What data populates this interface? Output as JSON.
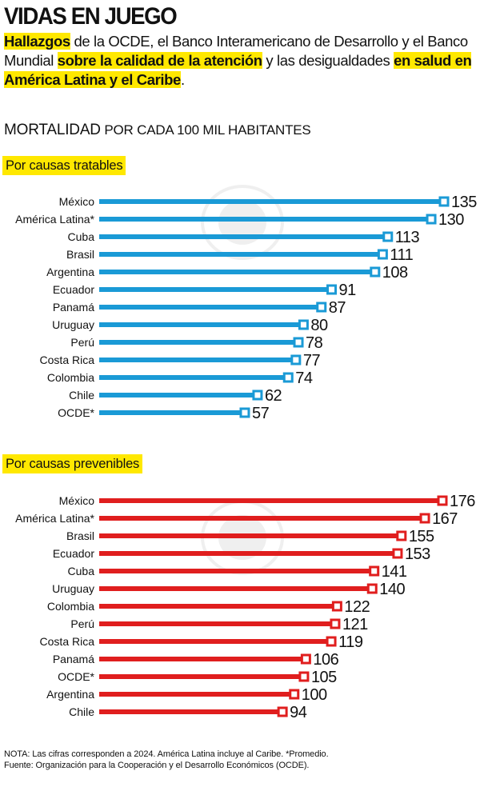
{
  "header": {
    "title": "VIDAS EN JUEGO",
    "lead": [
      {
        "text": "Hallazgos",
        "hl": true
      },
      {
        "text": " de la OCDE, el Banco Interamericano de Desarrollo y el Banco Mundial ",
        "hl": false
      },
      {
        "text": "sobre la calidad de la atención",
        "hl": true
      },
      {
        "text": " y las desigualdades ",
        "hl": false
      },
      {
        "text": "en salud en América Latina y el Caribe",
        "hl": true
      },
      {
        "text": ".",
        "hl": false
      }
    ]
  },
  "subtitle": {
    "main": "MORTALIDAD",
    "rest": " POR CADA 100 MIL HABITANTES"
  },
  "colors": {
    "treatable": "#1a9ad6",
    "preventable": "#e01e1e",
    "highlight": "#ffe800"
  },
  "chart_data": [
    {
      "type": "bar",
      "orientation": "horizontal",
      "title": "Por causas tratables",
      "categories": [
        "México",
        "América Latina*",
        "Cuba",
        "Brasil",
        "Argentina",
        "Ecuador",
        "Panamá",
        "Uruguay",
        "Perú",
        "Costa Rica",
        "Colombia",
        "Chile",
        "OCDE*"
      ],
      "values": [
        135,
        130,
        113,
        111,
        108,
        91,
        87,
        80,
        78,
        77,
        74,
        62,
        57
      ],
      "color": "#1a9ad6"
    },
    {
      "type": "bar",
      "orientation": "horizontal",
      "title": "Por causas prevenibles",
      "categories": [
        "México",
        "América Latina*",
        "Brasil",
        "Ecuador",
        "Cuba",
        "Uruguay",
        "Colombia",
        "Perú",
        "Costa Rica",
        "Panamá",
        "OCDE*",
        "Argentina",
        "Chile"
      ],
      "values": [
        176,
        167,
        155,
        153,
        141,
        140,
        122,
        121,
        119,
        106,
        105,
        100,
        94
      ],
      "color": "#e01e1e"
    }
  ],
  "notes": {
    "note": "NOTA: Las cifras corresponden a 2024. América Latina incluye al Caribe. *Promedio.",
    "source": "Fuente: Organización para la Cooperación y el Desarrollo Económicos (OCDE)."
  }
}
